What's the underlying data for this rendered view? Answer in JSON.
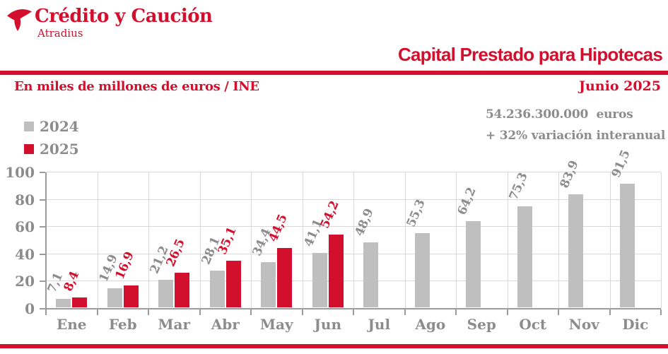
{
  "brand": {
    "name": "Crédito y Caución",
    "subname": "Atradius",
    "icon": "atradius-bird-icon"
  },
  "header": {
    "title": "Capital Prestado para Hipotecas",
    "unit_label": "En miles de millones de euros / INE",
    "period_label": "Junio 2025"
  },
  "highlight": {
    "amount": "54.236.300.000  euros",
    "variation": "+ 32% variación interanual"
  },
  "legend": [
    {
      "label": "2024",
      "color": "#bfbfbf"
    },
    {
      "label": "2025",
      "color": "#d30f2e"
    }
  ],
  "colors": {
    "brand_red": "#d30f2e",
    "bar_gray": "#bfbfbf",
    "text_gray": "#8c8c8c",
    "axis_gray": "#9c9c9c",
    "grid_gray": "#d9d9d9",
    "background": "#ffffff"
  },
  "chart_data": {
    "type": "bar",
    "title": "Capital Prestado para Hipotecas",
    "unit": "En miles de millones de euros / INE",
    "period": "Junio 2025",
    "categories": [
      "Ene",
      "Feb",
      "Mar",
      "Abr",
      "May",
      "Jun",
      "Jul",
      "Ago",
      "Sep",
      "Oct",
      "Nov",
      "Dic"
    ],
    "series": [
      {
        "name": "2024",
        "color": "#bfbfbf",
        "label_color": "#8c8c8c",
        "values": [
          7.1,
          14.9,
          21.2,
          28.1,
          34.4,
          41.1,
          48.9,
          55.3,
          64.2,
          75.3,
          83.9,
          91.5
        ],
        "labels": [
          "7,1",
          "14,9",
          "21,2",
          "28,1",
          "34,4",
          "41,1",
          "48,9",
          "55,3",
          "64,2",
          "75,3",
          "83,9",
          "91,5"
        ]
      },
      {
        "name": "2025",
        "color": "#d30f2e",
        "label_color": "#d30f2e",
        "values": [
          8.4,
          16.9,
          26.5,
          35.1,
          44.5,
          54.2,
          null,
          null,
          null,
          null,
          null,
          null
        ],
        "labels": [
          "8,4",
          "16,9",
          "26,5",
          "35,1",
          "44,5",
          "54,2"
        ]
      }
    ],
    "ylim": [
      0,
      100
    ],
    "yticks": [
      0,
      20,
      40,
      60,
      80,
      100
    ],
    "grid": true,
    "legend_position": "top-left",
    "value_label_rotation_deg": -67,
    "xlabel": "",
    "ylabel": ""
  }
}
